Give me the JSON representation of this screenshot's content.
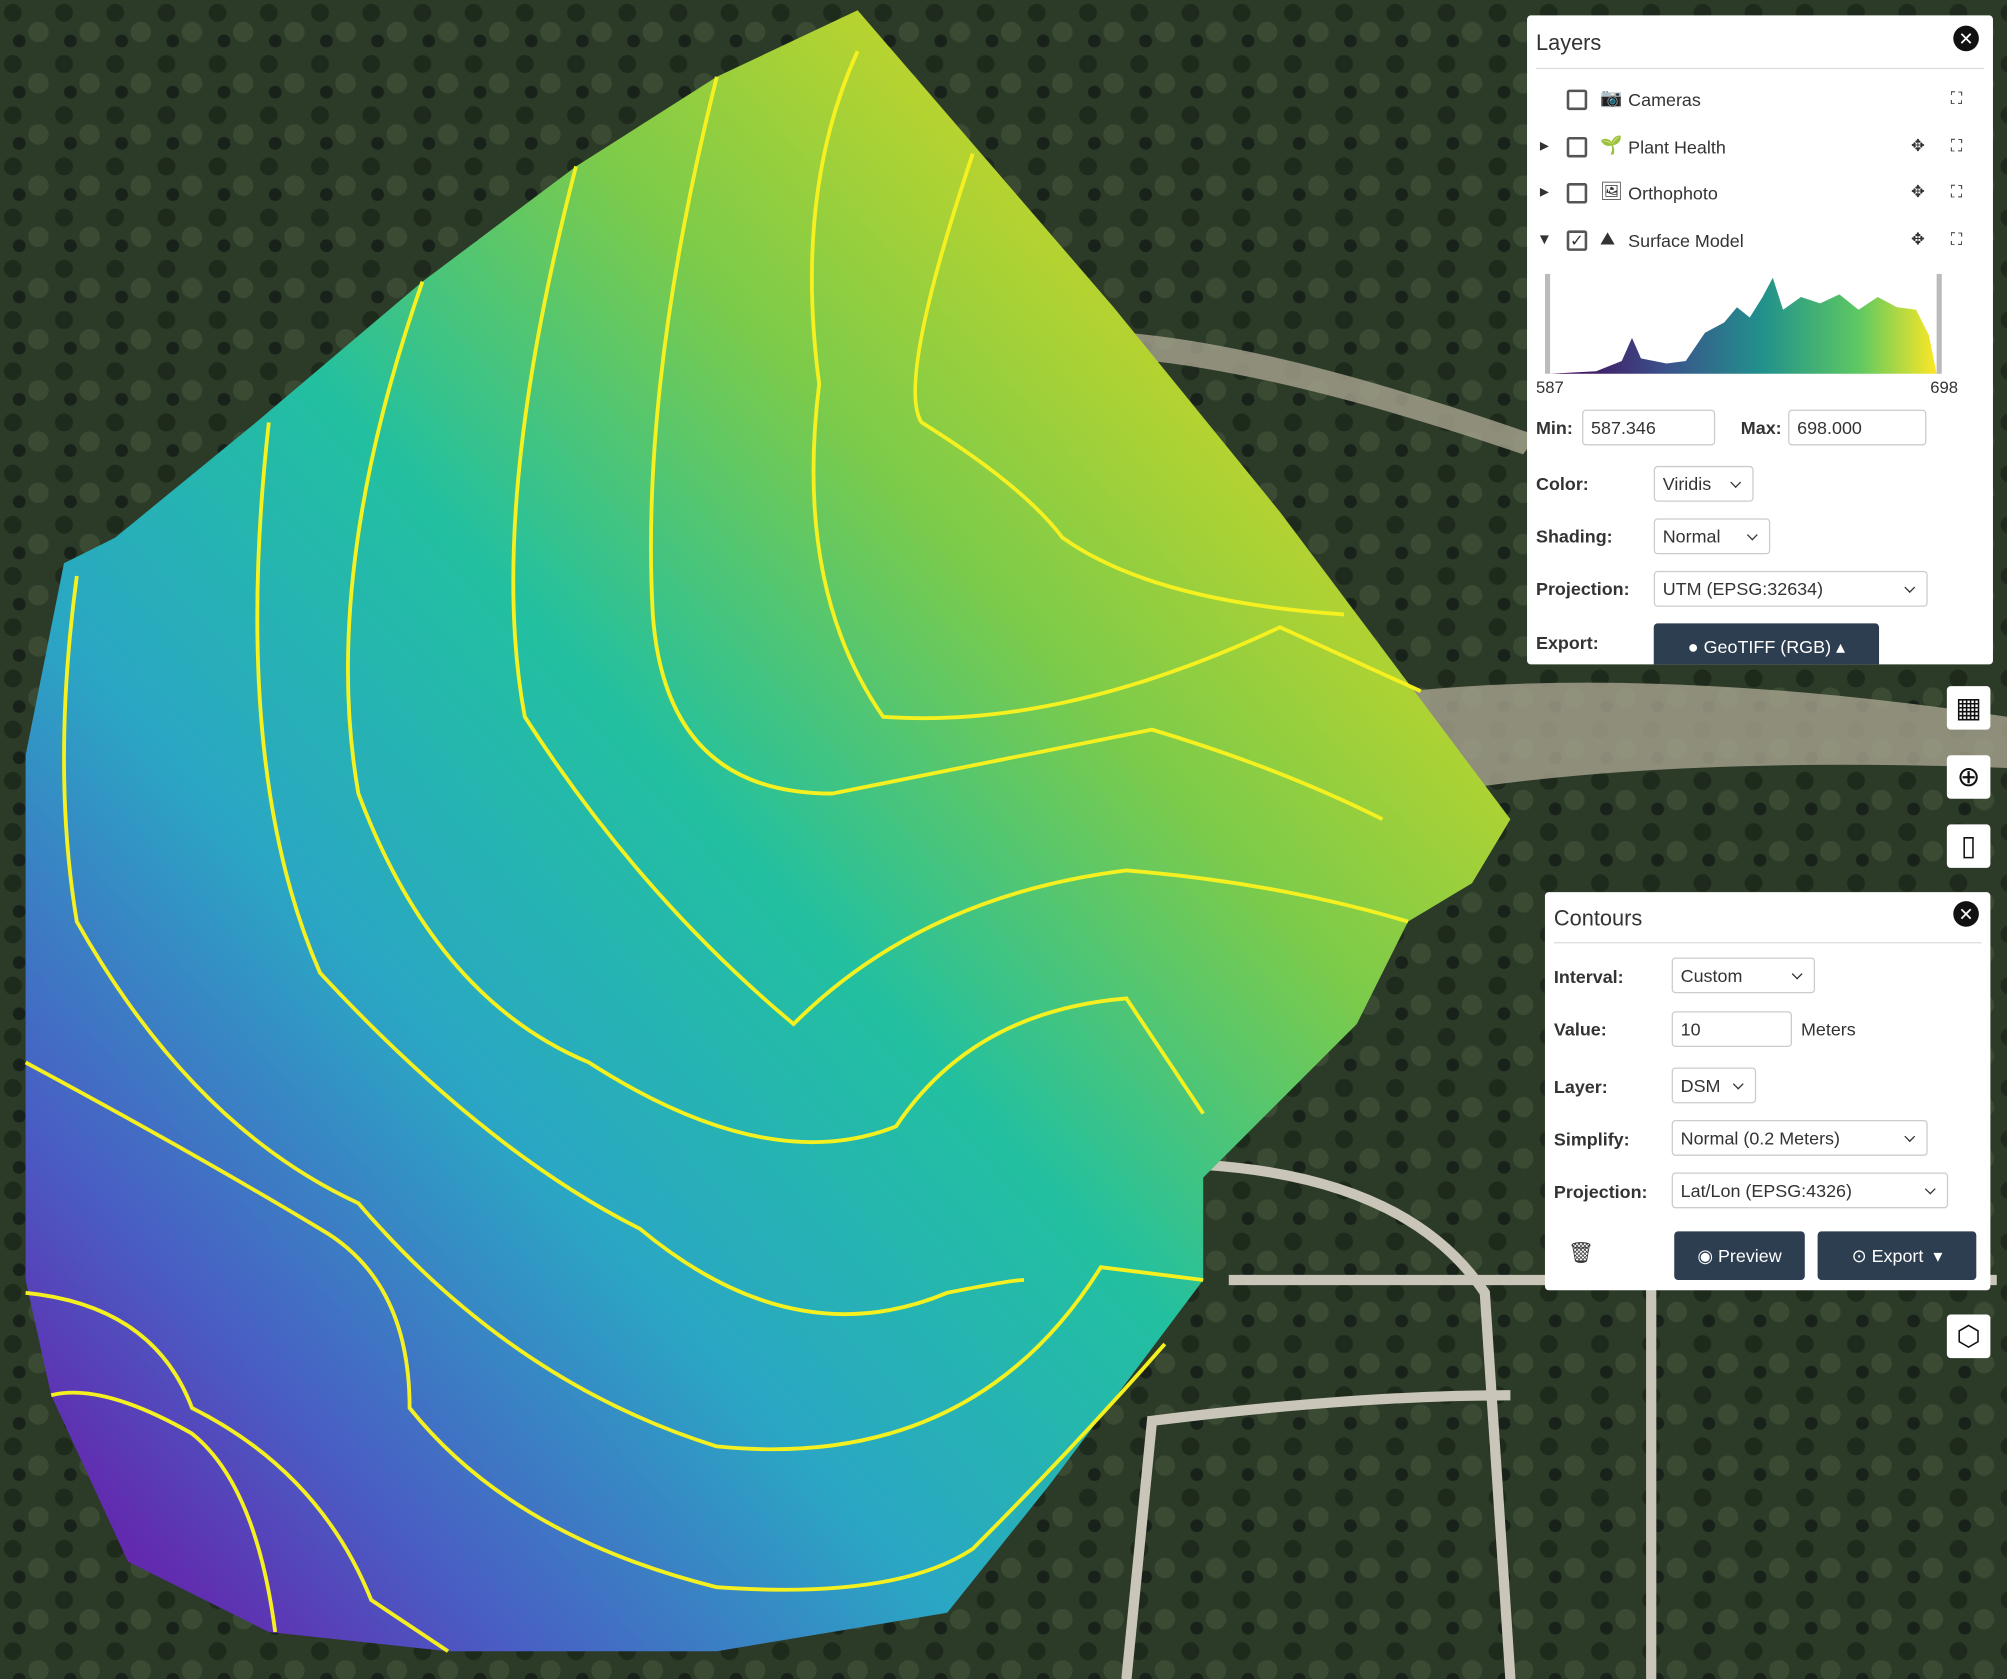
{
  "layers_panel": {
    "title": "Layers",
    "layers": [
      {
        "name": "Cameras",
        "checked": false
      },
      {
        "name": "Plant Health",
        "checked": false
      },
      {
        "name": "Orthophoto",
        "checked": false
      },
      {
        "name": "Surface Model",
        "checked": true
      }
    ],
    "histogram_min": "587",
    "histogram_max": "698",
    "min_label": "Min:",
    "min_value": "587.346",
    "max_label": "Max:",
    "max_value": "698.000",
    "color_label": "Color:",
    "color": "Viridis",
    "shading_label": "Shading:",
    "shading": "Normal",
    "projection_label": "Projection:",
    "projection": "UTM (EPSG:32634)",
    "export_label": "Export:",
    "export": "GeoTIFF (RGB)"
  },
  "contours_panel": {
    "title": "Contours",
    "interval_label": "Interval:",
    "interval": "Custom",
    "value_label": "Value:",
    "value": "10",
    "unit": "Meters",
    "layer_label": "Layer:",
    "layer": "DSM",
    "simplify_label": "Simplify:",
    "simplify": "Normal (0.2 Meters)",
    "projection_label": "Projection:",
    "projection": "Lat/Lon (EPSG:4326)",
    "preview": "Preview",
    "export": "Export"
  }
}
